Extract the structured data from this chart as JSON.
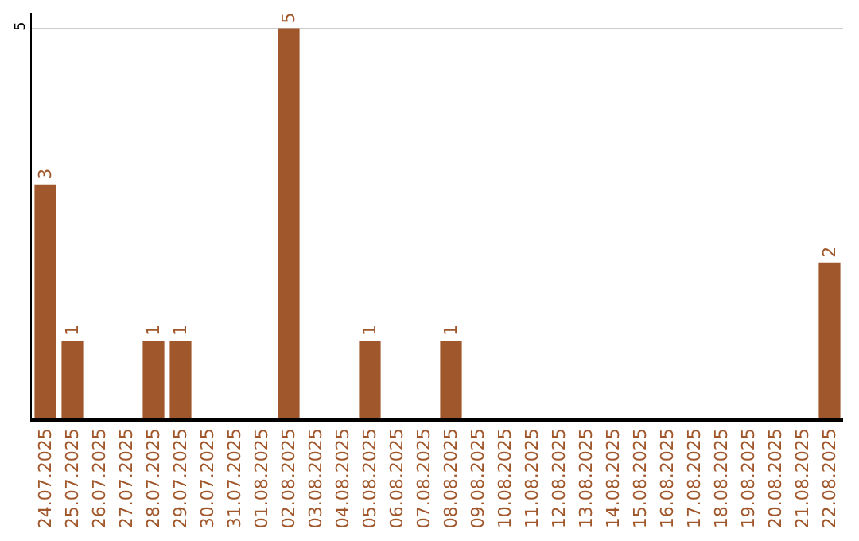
{
  "chart_data": {
    "type": "bar",
    "categories": [
      "24.07.2025",
      "25.07.2025",
      "26.07.2025",
      "27.07.2025",
      "28.07.2025",
      "29.07.2025",
      "30.07.2025",
      "31.07.2025",
      "01.08.2025",
      "02.08.2025",
      "03.08.2025",
      "04.08.2025",
      "05.08.2025",
      "06.08.2025",
      "07.08.2025",
      "08.08.2025",
      "09.08.2025",
      "10.08.2025",
      "11.08.2025",
      "12.08.2025",
      "13.08.2025",
      "14.08.2025",
      "15.08.2025",
      "16.08.2025",
      "17.08.2025",
      "18.08.2025",
      "19.08.2025",
      "20.08.2025",
      "21.08.2025",
      "22.08.2025"
    ],
    "values": [
      3,
      1,
      0,
      0,
      1,
      1,
      0,
      0,
      0,
      5,
      0,
      0,
      1,
      0,
      0,
      1,
      0,
      0,
      0,
      0,
      0,
      0,
      0,
      0,
      0,
      0,
      0,
      0,
      0,
      2
    ],
    "value_labels": [
      "3",
      "1",
      null,
      null,
      "1",
      "1",
      null,
      null,
      null,
      "5",
      null,
      null,
      "1",
      null,
      null,
      "1",
      null,
      null,
      null,
      null,
      null,
      null,
      null,
      null,
      null,
      null,
      null,
      null,
      null,
      "2"
    ],
    "color": "#a0572b",
    "ylim": [
      0,
      5.2
    ],
    "yticks": [
      5
    ],
    "grid": "y",
    "legend": false
  }
}
